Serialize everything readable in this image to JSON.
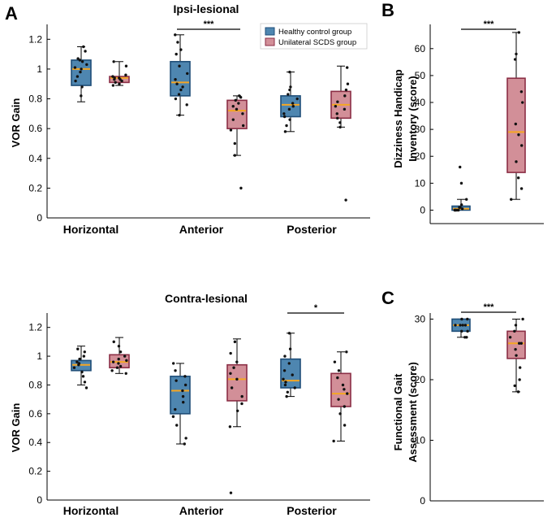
{
  "colors": {
    "healthy_fill": "#4e86b0",
    "healthy_edge": "#1f4e78",
    "scds_fill": "#d28f98",
    "scds_edge": "#8b2e45",
    "median": "#f5a623",
    "point": "#111111"
  },
  "panel_letters": {
    "a": "A",
    "b": "B",
    "c": "C"
  },
  "legend": {
    "healthy": "Healthy control group",
    "scds": "Unilateral SCDS group"
  },
  "chart_data": [
    {
      "id": "ipsi",
      "type": "box",
      "title": "Ipsi-lesional",
      "ylabel": "VOR Gain",
      "ylim": [
        0,
        1.3
      ],
      "yticks": [
        0,
        0.2,
        0.4,
        0.6,
        0.8,
        1,
        1.2
      ],
      "ytick_labels": [
        "0",
        "0.2",
        "0.4",
        "0.6",
        "0.8",
        "1",
        "1.2"
      ],
      "categories": [
        "Horizontal",
        "Anterior",
        "Posterior"
      ],
      "boxes": [
        {
          "category": 0,
          "group": "healthy",
          "whisker_low": 0.78,
          "q1": 0.89,
          "median": 1.0,
          "q3": 1.06,
          "whisker_high": 1.15,
          "points": [
            0.82,
            0.88,
            0.92,
            0.95,
            0.98,
            1.0,
            1.01,
            1.03,
            1.05,
            1.06,
            1.07,
            1.12,
            1.15
          ]
        },
        {
          "category": 0,
          "group": "scds",
          "whisker_low": 0.89,
          "q1": 0.91,
          "median": 0.94,
          "q3": 0.95,
          "whisker_high": 1.05,
          "points": [
            0.89,
            0.9,
            0.91,
            0.92,
            0.93,
            0.93,
            0.94,
            0.94,
            0.95,
            0.96,
            1.02,
            1.05
          ]
        },
        {
          "category": 1,
          "group": "healthy",
          "whisker_low": 0.69,
          "q1": 0.82,
          "median": 0.91,
          "q3": 1.05,
          "whisker_high": 1.23,
          "points": [
            0.69,
            0.76,
            0.8,
            0.83,
            0.86,
            0.88,
            0.9,
            0.93,
            0.97,
            1.02,
            1.1,
            1.13,
            1.18,
            1.23
          ]
        },
        {
          "category": 1,
          "group": "scds",
          "whisker_low": 0.42,
          "q1": 0.6,
          "median": 0.72,
          "q3": 0.79,
          "whisker_high": 0.82,
          "points": [
            0.2,
            0.42,
            0.5,
            0.59,
            0.62,
            0.66,
            0.7,
            0.73,
            0.75,
            0.77,
            0.79,
            0.81,
            0.82
          ]
        },
        {
          "category": 2,
          "group": "healthy",
          "whisker_low": 0.58,
          "q1": 0.68,
          "median": 0.76,
          "q3": 0.82,
          "whisker_high": 0.98,
          "points": [
            0.58,
            0.62,
            0.66,
            0.68,
            0.7,
            0.73,
            0.75,
            0.77,
            0.8,
            0.83,
            0.86,
            0.88,
            0.98
          ]
        },
        {
          "category": 2,
          "group": "scds",
          "whisker_low": 0.61,
          "q1": 0.67,
          "median": 0.76,
          "q3": 0.85,
          "whisker_high": 1.02,
          "points": [
            0.12,
            0.61,
            0.64,
            0.67,
            0.7,
            0.73,
            0.75,
            0.78,
            0.82,
            0.86,
            0.9,
            1.01
          ]
        }
      ],
      "significance": [
        {
          "category": 1,
          "label": "***"
        }
      ],
      "legend_location": "top-right"
    },
    {
      "id": "contra",
      "type": "box",
      "title": "Contra-lesional",
      "ylabel": "VOR Gain",
      "ylim": [
        0,
        1.3
      ],
      "yticks": [
        0,
        0.2,
        0.4,
        0.6,
        0.8,
        1,
        1.2
      ],
      "ytick_labels": [
        "0",
        "0.2",
        "0.4",
        "0.6",
        "0.8",
        "1",
        "1.2"
      ],
      "categories": [
        "Horizontal",
        "Anterior",
        "Posterior"
      ],
      "boxes": [
        {
          "category": 0,
          "group": "healthy",
          "whisker_low": 0.8,
          "q1": 0.9,
          "median": 0.94,
          "q3": 0.97,
          "whisker_high": 1.07,
          "points": [
            0.78,
            0.82,
            0.86,
            0.89,
            0.92,
            0.94,
            0.95,
            0.96,
            0.98,
            1.0,
            1.03,
            1.05
          ]
        },
        {
          "category": 0,
          "group": "scds",
          "whisker_low": 0.88,
          "q1": 0.92,
          "median": 0.96,
          "q3": 1.01,
          "whisker_high": 1.13,
          "points": [
            0.88,
            0.9,
            0.92,
            0.93,
            0.95,
            0.96,
            0.97,
            0.98,
            1.0,
            1.03,
            1.07,
            1.1
          ]
        },
        {
          "category": 1,
          "group": "healthy",
          "whisker_low": 0.39,
          "q1": 0.6,
          "median": 0.76,
          "q3": 0.86,
          "whisker_high": 0.95,
          "points": [
            0.39,
            0.43,
            0.52,
            0.58,
            0.63,
            0.68,
            0.72,
            0.76,
            0.8,
            0.83,
            0.86,
            0.9,
            0.95
          ]
        },
        {
          "category": 1,
          "group": "scds",
          "whisker_low": 0.51,
          "q1": 0.69,
          "median": 0.84,
          "q3": 0.94,
          "whisker_high": 1.12,
          "points": [
            0.05,
            0.51,
            0.62,
            0.67,
            0.72,
            0.78,
            0.84,
            0.88,
            0.92,
            0.96,
            1.02,
            1.1
          ]
        },
        {
          "category": 2,
          "group": "healthy",
          "whisker_low": 0.72,
          "q1": 0.78,
          "median": 0.83,
          "q3": 0.98,
          "whisker_high": 1.16,
          "points": [
            0.72,
            0.75,
            0.78,
            0.8,
            0.82,
            0.84,
            0.87,
            0.9,
            0.95,
            1.0,
            1.05,
            1.16
          ]
        },
        {
          "category": 2,
          "group": "scds",
          "whisker_low": 0.41,
          "q1": 0.65,
          "median": 0.74,
          "q3": 0.88,
          "whisker_high": 1.03,
          "points": [
            0.41,
            0.52,
            0.6,
            0.65,
            0.7,
            0.74,
            0.77,
            0.8,
            0.85,
            0.9,
            0.96,
            1.03
          ]
        }
      ],
      "significance": [
        {
          "category": 2,
          "label": "*"
        }
      ]
    },
    {
      "id": "dhi",
      "type": "box",
      "title": "",
      "ylabel_lines": [
        "Dizziness Handicap",
        "Inventory (score)"
      ],
      "ylim": [
        -5,
        69
      ],
      "yticks": [
        0,
        10,
        20,
        30,
        40,
        50,
        60
      ],
      "ytick_labels": [
        "0",
        "10",
        "20",
        "30",
        "40",
        "50",
        "60"
      ],
      "boxes": [
        {
          "group": "healthy",
          "whisker_low": 0,
          "q1": 0,
          "median": 0.5,
          "q3": 1.5,
          "whisker_high": 4,
          "points": [
            0,
            0,
            0,
            0,
            0,
            0.5,
            1,
            1,
            2,
            4,
            10,
            16
          ]
        },
        {
          "group": "scds",
          "whisker_low": 4,
          "q1": 14,
          "median": 29,
          "q3": 49,
          "whisker_high": 66,
          "points": [
            4,
            8,
            12,
            18,
            24,
            28,
            32,
            40,
            44,
            56,
            58,
            66
          ]
        }
      ],
      "significance": [
        {
          "label": "***"
        }
      ]
    },
    {
      "id": "fga",
      "type": "box",
      "title": "",
      "ylabel_lines": [
        "Functional Gait",
        "Assessment (score)"
      ],
      "ylim": [
        0,
        31
      ],
      "yticks": [
        0,
        10,
        20,
        30
      ],
      "ytick_labels": [
        "0",
        "10",
        "20",
        "30"
      ],
      "boxes": [
        {
          "group": "healthy",
          "whisker_low": 27,
          "q1": 28,
          "median": 29,
          "q3": 30,
          "whisker_high": 30,
          "points": [
            27,
            27,
            28,
            28,
            29,
            29,
            29,
            29,
            30,
            30
          ]
        },
        {
          "group": "scds",
          "whisker_low": 18,
          "q1": 23.5,
          "median": 26,
          "q3": 28,
          "whisker_high": 30,
          "points": [
            18,
            19,
            20,
            22,
            24,
            25,
            26,
            26,
            27,
            28,
            29,
            30
          ]
        }
      ],
      "significance": [
        {
          "label": "***"
        }
      ]
    }
  ]
}
